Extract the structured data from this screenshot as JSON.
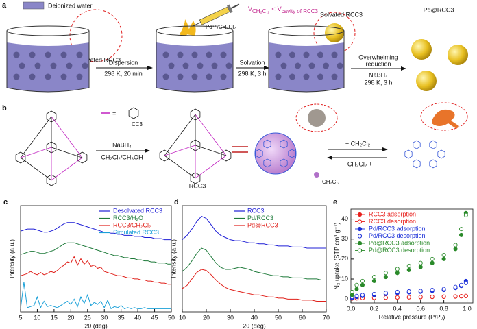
{
  "panel_a": {
    "label": "a",
    "legend": "Deionized water",
    "desolvated": "Desolvated RCC3",
    "step1": "Dispersion",
    "cond1": "298 K, 20 min",
    "reagent": "Pd²⁺/CH₂Cl₂",
    "step2": "Solvation",
    "cond2": "298 K, 3 h",
    "condition": [
      "V",
      "CH₂Cl₂",
      "<",
      "V",
      "cavity of RCC3"
    ],
    "solvated": "Solvated RCC3",
    "step3": [
      "Overwhelming",
      "reduction"
    ],
    "reductant": "NaBH₄",
    "cond3": "298 K, 3 h",
    "product": "Pd@RCC3"
  },
  "panel_b": {
    "label": "b",
    "equals": "=",
    "substituent": "CC3",
    "reagent": "NaBH₄",
    "solvent": "CH₂Cl₂/CH₃OH",
    "product": "RCC3",
    "release": "− CH₂Cl₂",
    "uptake": "CH₂Cl₂ +",
    "guest": "CH₂Cl₂"
  },
  "chart_data": [
    {
      "type": "line",
      "panel": "c",
      "x_label": "2θ (deg)",
      "y_label": "Intensity (a.u.)",
      "x": [
        5,
        6,
        7,
        8,
        9,
        10,
        11,
        12,
        13,
        14,
        15,
        16,
        17,
        18,
        19,
        20,
        21,
        22,
        23,
        24,
        25,
        26,
        27,
        28,
        29,
        30,
        31,
        32,
        33,
        34,
        35,
        36,
        37,
        38,
        39,
        40,
        41,
        42,
        43,
        44,
        45,
        46,
        47,
        48,
        49,
        50
      ],
      "xlim": [
        5,
        50
      ],
      "xticks": [
        5,
        10,
        15,
        20,
        25,
        30,
        35,
        40,
        45,
        50
      ],
      "ylim": [
        0,
        100
      ],
      "legend": "upper right",
      "series": [
        {
          "name": "Desolvated RCC3",
          "color": "#1f1fd6",
          "values": [
            76,
            77,
            78,
            78,
            78,
            77,
            76,
            75,
            75,
            76,
            77,
            79,
            81,
            83,
            84,
            84,
            84,
            83,
            82,
            81,
            80,
            79,
            78,
            77,
            76,
            75,
            75,
            74,
            74,
            73,
            73,
            72,
            72,
            72,
            71,
            71,
            71,
            70,
            70,
            70,
            69,
            69,
            69,
            68,
            68,
            68
          ]
        },
        {
          "name": "RCC3/H₂O",
          "color": "#1e7a3a",
          "values": [
            54,
            55,
            56,
            57,
            57,
            56,
            55,
            55,
            56,
            57,
            58,
            60,
            62,
            64,
            65,
            65,
            65,
            64,
            63,
            62,
            61,
            60,
            59,
            58,
            57,
            56,
            55,
            54,
            53,
            53,
            52,
            51,
            51,
            50,
            50,
            49,
            49,
            48,
            48,
            47,
            47,
            46,
            46,
            46,
            45,
            45
          ]
        },
        {
          "name": "RCC3/CH₂Cl₂",
          "color": "#e0201a",
          "values": [
            34,
            35,
            36,
            38,
            36,
            35,
            37,
            35,
            36,
            38,
            37,
            39,
            42,
            44,
            47,
            46,
            52,
            44,
            50,
            45,
            48,
            43,
            44,
            41,
            42,
            38,
            37,
            36,
            35,
            34,
            34,
            33,
            32,
            32,
            31,
            31,
            30,
            30,
            29,
            29,
            28,
            28,
            27,
            27,
            26,
            26
          ]
        },
        {
          "name": "Simulated RCC3",
          "color": "#1aa0d8",
          "values": [
            3,
            28,
            4,
            5,
            6,
            14,
            4,
            10,
            5,
            6,
            5,
            4,
            6,
            8,
            10,
            7,
            12,
            5,
            14,
            8,
            16,
            6,
            9,
            7,
            10,
            4,
            11,
            3,
            5,
            4,
            6,
            3,
            4,
            3,
            4,
            3,
            3,
            4,
            3,
            3,
            3,
            3,
            3,
            3,
            3,
            3
          ]
        }
      ]
    },
    {
      "type": "line",
      "panel": "d",
      "x_label": "2θ (deg)",
      "y_label": "Intensity (a.u.)",
      "x": [
        10,
        12,
        14,
        16,
        18,
        20,
        22,
        24,
        26,
        28,
        30,
        32,
        34,
        36,
        38,
        40,
        42,
        44,
        46,
        48,
        50,
        52,
        54,
        56,
        58,
        60,
        62,
        64,
        66,
        68,
        70
      ],
      "xlim": [
        10,
        70
      ],
      "xticks": [
        10,
        20,
        30,
        40,
        50,
        60,
        70
      ],
      "ylim": [
        0,
        100
      ],
      "legend": "upper center",
      "series": [
        {
          "name": "RCC3",
          "color": "#1f1fd6",
          "values": [
            68,
            72,
            78,
            85,
            90,
            88,
            82,
            76,
            72,
            70,
            68,
            67,
            67,
            66,
            65,
            65,
            64,
            64,
            63,
            63,
            62,
            62,
            62,
            61,
            61,
            61,
            60,
            60,
            60,
            60,
            60
          ]
        },
        {
          "name": "Pd/RCC3",
          "color": "#1e7a3a",
          "values": [
            38,
            42,
            48,
            55,
            60,
            58,
            52,
            46,
            42,
            40,
            40,
            41,
            42,
            41,
            40,
            38,
            37,
            36,
            35,
            34,
            34,
            33,
            33,
            32,
            32,
            32,
            31,
            31,
            31,
            30,
            30
          ]
        },
        {
          "name": "Pd@RCC3",
          "color": "#e0201a",
          "values": [
            22,
            25,
            31,
            37,
            40,
            39,
            35,
            30,
            26,
            23,
            21,
            20,
            19,
            18,
            17,
            16,
            16,
            15,
            14,
            14,
            13,
            13,
            12,
            12,
            12,
            11,
            11,
            11,
            10,
            10,
            10
          ]
        }
      ]
    },
    {
      "type": "scatter",
      "panel": "e",
      "x_label": "Relative pressure (P/P₀)",
      "y_label": "N₂ uptake (STP cm³ g⁻¹)",
      "x": [
        0.01,
        0.05,
        0.1,
        0.2,
        0.3,
        0.4,
        0.5,
        0.6,
        0.7,
        0.8,
        0.9,
        0.95,
        0.99
      ],
      "xlim": [
        0,
        1.05
      ],
      "xticks": [
        {
          "value": 0,
          "label": "0.0"
        },
        {
          "value": 0.2,
          "label": "0.2"
        },
        {
          "value": 0.4,
          "label": "0.4"
        },
        {
          "value": 0.6,
          "label": "0.6"
        },
        {
          "value": 0.8,
          "label": "0.8"
        },
        {
          "value": 1,
          "label": "1.0"
        }
      ],
      "ylim": [
        -2,
        45
      ],
      "yticks": [
        0,
        10,
        20,
        30,
        40
      ],
      "legend": "upper left",
      "series": [
        {
          "name": "RCC3 adsorption",
          "color": "#e8201c",
          "marker": "filled",
          "values": [
            0.2,
            0.3,
            0.4,
            0.5,
            0.6,
            0.7,
            0.8,
            0.9,
            1,
            1.1,
            1.2,
            1.3,
            1.5
          ]
        },
        {
          "name": "RCC3 desorption",
          "color": "#e8201c",
          "marker": "open",
          "values": [
            0.3,
            0.4,
            0.5,
            0.6,
            0.7,
            0.8,
            0.9,
            1,
            1.1,
            1.2,
            1.3,
            1.4,
            1.5
          ]
        },
        {
          "name": "Pd/RCC3 adsorption",
          "color": "#1a2fd8",
          "marker": "filled",
          "values": [
            0.5,
            1,
            1.5,
            2,
            2.5,
            3,
            3.3,
            3.6,
            4,
            4.5,
            5.5,
            6.5,
            9
          ]
        },
        {
          "name": "Pd/RCC3 desorption",
          "color": "#1a2fd8",
          "marker": "open",
          "values": [
            1,
            1.5,
            2,
            2.5,
            3,
            3.5,
            3.8,
            4,
            4.5,
            5,
            6,
            7,
            8
          ]
        },
        {
          "name": "Pd@RCC3 adsorption",
          "color": "#2a8a2a",
          "marker": "filled",
          "values": [
            2,
            5,
            7,
            9,
            11,
            13,
            14.5,
            16,
            18,
            20,
            25,
            32,
            43
          ]
        },
        {
          "name": "Pd@RCC3 desorption",
          "color": "#2a8a2a",
          "marker": "open",
          "values": [
            3.5,
            7,
            9,
            11,
            13,
            15,
            16.5,
            18,
            20,
            22,
            27,
            35,
            42
          ]
        }
      ]
    }
  ]
}
